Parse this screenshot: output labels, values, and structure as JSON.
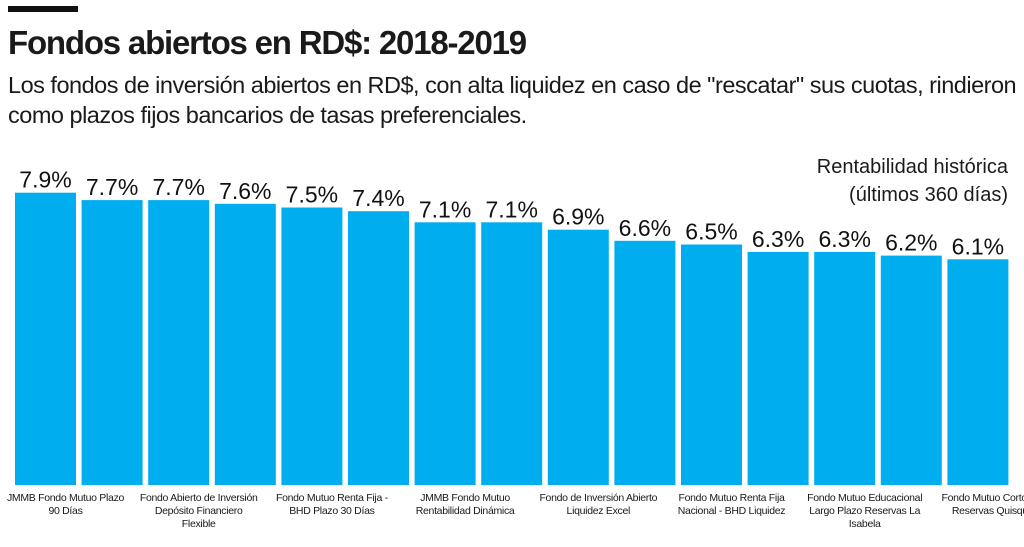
{
  "title": "Fondos abiertos en RD$: 2018-2019",
  "subtitle": "Los fondos de inversión abiertos en RD$, con alta liquidez en caso de \"rescatar\" sus cuotas, rindieron como plazos fijos bancarios de tasas preferenciales.",
  "chart_data": {
    "type": "bar",
    "legend": [
      "Rentabilidad histórica",
      "(últimos 360 días)"
    ],
    "categories": [
      "JMMB Fondo Mutuo Plazo 90 Días",
      "",
      "Fondo Abierto de Inversión Depósito Financiero Flexible",
      "",
      "Fondo Mutuo Renta Fija - BHD Plazo 30 Días",
      "",
      "JMMB Fondo Mutuo Rentabilidad Dinámica",
      "",
      "Fondo de Inversión Abierto Liquidez Excel",
      "",
      "Fondo Mutuo Renta Fija Nacional - BHD Liquidez",
      "",
      "Fondo Mutuo Educacional Largo Plazo Reservas La Isabela",
      "",
      "Fondo Mutuo Corto Plazo Reservas Quisqueya"
    ],
    "values": [
      7.9,
      7.7,
      7.7,
      7.6,
      7.5,
      7.4,
      7.1,
      7.1,
      6.9,
      6.6,
      6.5,
      6.3,
      6.3,
      6.2,
      6.1
    ],
    "data_labels": [
      "7.9%",
      "7.7%",
      "7.7%",
      "7.6%",
      "7.5%",
      "7.4%",
      "7.1%",
      "7.1%",
      "6.9%",
      "6.6%",
      "6.5%",
      "6.3%",
      "6.3%",
      "6.2%",
      "6.1%"
    ],
    "ylim": [
      0,
      7.9
    ],
    "grid": false,
    "bar_color": "#00AEEF"
  }
}
